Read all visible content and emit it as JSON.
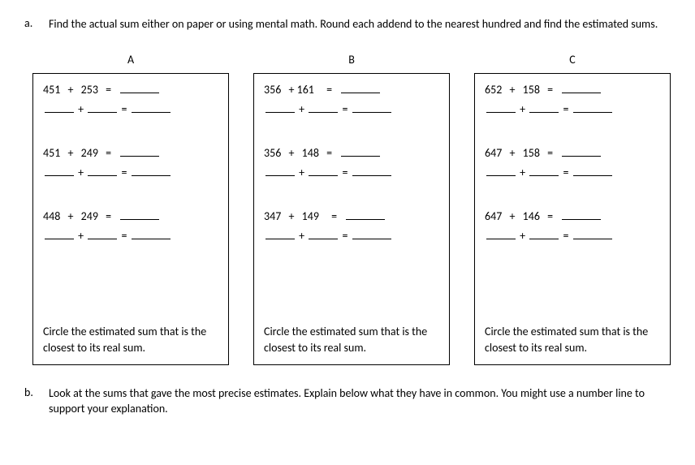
{
  "part_a": {
    "marker": "a.",
    "text": "Find the actual sum either on paper or using mental math.  Round each addend to the nearest hundred and find the estimated sums."
  },
  "columns": {
    "a": {
      "label": "A",
      "problems": [
        {
          "addend1": "451",
          "addend2": "253"
        },
        {
          "addend1": "451",
          "addend2": "249"
        },
        {
          "addend1": "448",
          "addend2": "249"
        }
      ],
      "circle_text": "Circle the estimated sum that is the closest to its real sum."
    },
    "b": {
      "label": "B",
      "problems": [
        {
          "addend1": "356",
          "addend2": "161"
        },
        {
          "addend1": "356",
          "addend2": "148"
        },
        {
          "addend1": "347",
          "addend2": "149"
        }
      ],
      "circle_text": "Circle the estimated sum that is the closest to its real sum."
    },
    "c": {
      "label": "C",
      "problems": [
        {
          "addend1": "652",
          "addend2": "158"
        },
        {
          "addend1": "647",
          "addend2": "158"
        },
        {
          "addend1": "647",
          "addend2": "146"
        }
      ],
      "circle_text": "Circle the estimated sum that is the closest to its real sum."
    }
  },
  "part_b": {
    "marker": "b.",
    "text": "Look at the sums that gave the most precise estimates.  Explain below what they have in common.  You might use a number line to support your explanation."
  },
  "style": {
    "font_family": "Calibri, Arial, sans-serif",
    "font_size_pt": 11,
    "text_color": "#000000",
    "background_color": "#ffffff",
    "box_border_color": "#000000",
    "blank_border_color": "#000000"
  }
}
